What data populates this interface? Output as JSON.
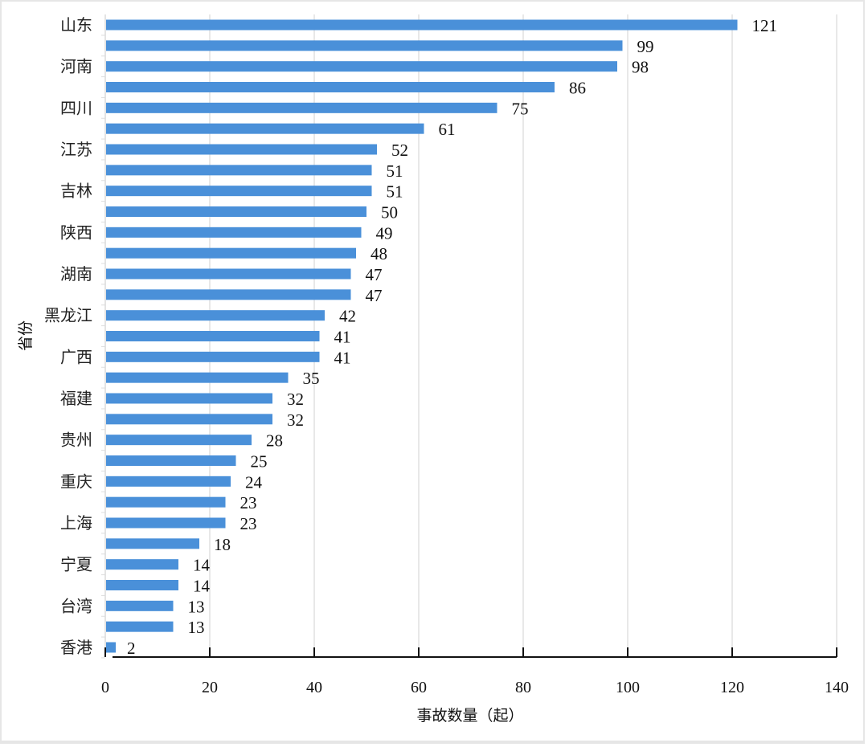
{
  "chart_data": {
    "type": "bar",
    "orientation": "horizontal",
    "title": "",
    "xlabel": "事故数量（起）",
    "ylabel": "省份",
    "xlim": [
      0,
      140
    ],
    "xticks": [
      0,
      20,
      40,
      60,
      80,
      100,
      120,
      140
    ],
    "grid": "vertical",
    "bar_color": "#4a90d9",
    "categories": [
      "山东",
      "",
      "河南",
      "",
      "四川",
      "",
      "江苏",
      "",
      "吉林",
      "",
      "陕西",
      "",
      "湖南",
      "",
      "黑龙江",
      "",
      "广西",
      "",
      "福建",
      "",
      "贵州",
      "",
      "重庆",
      "",
      "上海",
      "",
      "宁夏",
      "",
      "台湾",
      "",
      "香港"
    ],
    "values": [
      121,
      99,
      98,
      86,
      75,
      61,
      52,
      51,
      51,
      50,
      49,
      48,
      47,
      47,
      42,
      41,
      41,
      35,
      32,
      32,
      28,
      25,
      24,
      23,
      23,
      18,
      14,
      14,
      13,
      13,
      2
    ]
  }
}
